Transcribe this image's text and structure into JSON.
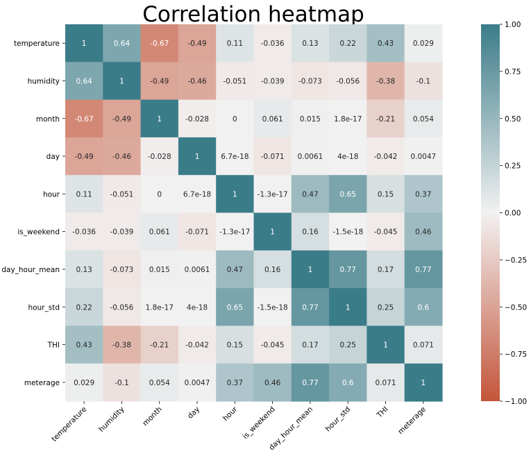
{
  "chart_data": {
    "type": "heatmap",
    "title": "Correlation heatmap",
    "xlabel": "",
    "ylabel": "",
    "categories": [
      "temperature",
      "humidity",
      "month",
      "day",
      "hour",
      "is_weekend",
      "day_hour_mean",
      "hour_std",
      "THI",
      "meterage"
    ],
    "values": [
      [
        1,
        0.64,
        -0.67,
        -0.49,
        0.11,
        -0.036,
        0.13,
        0.22,
        0.43,
        0.029
      ],
      [
        0.64,
        1,
        -0.49,
        -0.46,
        -0.051,
        -0.039,
        -0.073,
        -0.056,
        -0.38,
        -0.1
      ],
      [
        -0.67,
        -0.49,
        1,
        -0.028,
        0,
        0.061,
        0.015,
        1.8e-17,
        -0.21,
        0.054
      ],
      [
        -0.49,
        -0.46,
        -0.028,
        1,
        6.7e-18,
        -0.071,
        0.0061,
        4e-18,
        -0.042,
        0.0047
      ],
      [
        0.11,
        -0.051,
        0,
        6.7e-18,
        1,
        -1.3e-17,
        0.47,
        0.65,
        0.15,
        0.37
      ],
      [
        -0.036,
        -0.039,
        0.061,
        -0.071,
        -1.3e-17,
        1,
        0.16,
        -1.5e-18,
        -0.045,
        0.46
      ],
      [
        0.13,
        -0.073,
        0.015,
        0.0061,
        0.47,
        0.16,
        1,
        0.77,
        0.17,
        0.77
      ],
      [
        0.22,
        -0.056,
        1.8e-17,
        4e-18,
        0.65,
        -1.5e-18,
        0.77,
        1,
        0.25,
        0.6
      ],
      [
        0.43,
        -0.38,
        -0.21,
        -0.042,
        0.15,
        -0.045,
        0.17,
        0.25,
        1,
        0.071
      ],
      [
        0.029,
        -0.1,
        0.054,
        0.0047,
        0.37,
        0.46,
        0.77,
        0.6,
        0.071,
        1
      ]
    ],
    "labels": [
      [
        "1",
        "0.64",
        "-0.67",
        "-0.49",
        "0.11",
        "-0.036",
        "0.13",
        "0.22",
        "0.43",
        "0.029"
      ],
      [
        "0.64",
        "1",
        "-0.49",
        "-0.46",
        "-0.051",
        "-0.039",
        "-0.073",
        "-0.056",
        "-0.38",
        "-0.1"
      ],
      [
        "-0.67",
        "-0.49",
        "1",
        "-0.028",
        "0",
        "0.061",
        "0.015",
        "1.8e-17",
        "-0.21",
        "0.054"
      ],
      [
        "-0.49",
        "-0.46",
        "-0.028",
        "1",
        "6.7e-18",
        "-0.071",
        "0.0061",
        "4e-18",
        "-0.042",
        "0.0047"
      ],
      [
        "0.11",
        "-0.051",
        "0",
        "6.7e-18",
        "1",
        "-1.3e-17",
        "0.47",
        "0.65",
        "0.15",
        "0.37"
      ],
      [
        "-0.036",
        "-0.039",
        "0.061",
        "-0.071",
        "-1.3e-17",
        "1",
        "0.16",
        "-1.5e-18",
        "-0.045",
        "0.46"
      ],
      [
        "0.13",
        "-0.073",
        "0.015",
        "0.0061",
        "0.47",
        "0.16",
        "1",
        "0.77",
        "0.17",
        "0.77"
      ],
      [
        "0.22",
        "-0.056",
        "1.8e-17",
        "4e-18",
        "0.65",
        "-1.5e-18",
        "0.77",
        "1",
        "0.25",
        "0.6"
      ],
      [
        "0.43",
        "-0.38",
        "-0.21",
        "-0.042",
        "0.15",
        "-0.045",
        "0.17",
        "0.25",
        "1",
        "0.071"
      ],
      [
        "0.029",
        "-0.1",
        "0.054",
        "0.0047",
        "0.37",
        "0.46",
        "0.77",
        "0.6",
        "0.071",
        "1"
      ]
    ],
    "vmin": -1,
    "vmax": 1,
    "colorbar": {
      "ticks": [
        1,
        0.75,
        0.5,
        0.25,
        0,
        -0.25,
        -0.5,
        -0.75,
        -1
      ],
      "tick_labels": [
        "1.00",
        "0.75",
        "0.50",
        "0.25",
        "0.00",
        "−0.25",
        "−0.50",
        "−0.75",
        "−1.00"
      ],
      "placement": "right"
    },
    "colors": {
      "negative": "#c3553a",
      "center": "#f2f1f1",
      "positive": "#3b7c89"
    },
    "grid": false
  }
}
